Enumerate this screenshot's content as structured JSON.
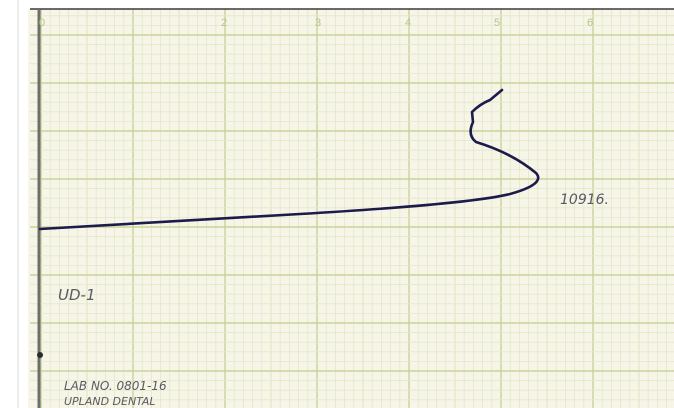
{
  "axis_ticks": [
    "0",
    "2",
    "3",
    "4",
    "5",
    "6"
  ],
  "annotations": {
    "sample_weight": "10916.",
    "sample_id": "UD-1",
    "lab_number": "LAB NO. 0801-16",
    "company": "UPLAND DENTAL"
  }
}
